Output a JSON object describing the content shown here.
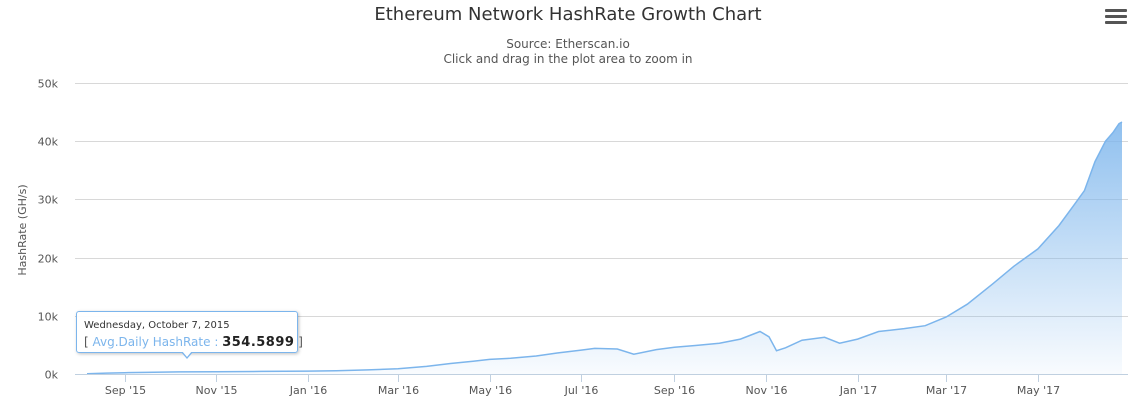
{
  "chart_data": {
    "type": "area",
    "title": "Ethereum Network HashRate Growth Chart",
    "subtitle_lines": [
      "Source: Etherscan.io",
      "Click and drag in the plot area to zoom in"
    ],
    "xlabel": "",
    "ylabel": "HashRate (GH/s)",
    "ylim": [
      0,
      50000
    ],
    "yticks": [
      {
        "value": 0,
        "label": "0k"
      },
      {
        "value": 10000,
        "label": "10k"
      },
      {
        "value": 20000,
        "label": "20k"
      },
      {
        "value": 30000,
        "label": "30k"
      },
      {
        "value": 40000,
        "label": "40k"
      },
      {
        "value": 50000,
        "label": "50k"
      }
    ],
    "xlim": [
      "2015-07-30",
      "2017-06-30"
    ],
    "xticks": [
      {
        "date": "2015-09-01",
        "label": "Sep '15"
      },
      {
        "date": "2015-11-01",
        "label": "Nov '15"
      },
      {
        "date": "2016-01-01",
        "label": "Jan '16"
      },
      {
        "date": "2016-03-01",
        "label": "Mar '16"
      },
      {
        "date": "2016-05-01",
        "label": "May '16"
      },
      {
        "date": "2016-07-01",
        "label": "Jul '16"
      },
      {
        "date": "2016-09-01",
        "label": "Sep '16"
      },
      {
        "date": "2016-11-01",
        "label": "Nov '16"
      },
      {
        "date": "2017-01-01",
        "label": "Jan '17"
      },
      {
        "date": "2017-03-01",
        "label": "Mar '17"
      },
      {
        "date": "2017-05-01",
        "label": "May '17"
      }
    ],
    "grid": true,
    "legend": "none",
    "series": [
      {
        "name": "Avg.Daily HashRate",
        "color": "#7cb5ec",
        "points": [
          [
            "2015-08-07",
            50
          ],
          [
            "2015-08-20",
            150
          ],
          [
            "2015-09-01",
            220
          ],
          [
            "2015-09-15",
            280
          ],
          [
            "2015-10-07",
            354.5899
          ],
          [
            "2015-11-01",
            380
          ],
          [
            "2015-12-01",
            450
          ],
          [
            "2016-01-01",
            500
          ],
          [
            "2016-01-20",
            550
          ],
          [
            "2016-02-10",
            700
          ],
          [
            "2016-03-01",
            900
          ],
          [
            "2016-03-20",
            1300
          ],
          [
            "2016-04-05",
            1800
          ],
          [
            "2016-04-20",
            2200
          ],
          [
            "2016-05-01",
            2500
          ],
          [
            "2016-05-15",
            2700
          ],
          [
            "2016-06-01",
            3100
          ],
          [
            "2016-06-15",
            3600
          ],
          [
            "2016-07-01",
            4100
          ],
          [
            "2016-07-10",
            4400
          ],
          [
            "2016-07-25",
            4300
          ],
          [
            "2016-08-05",
            3400
          ],
          [
            "2016-08-20",
            4200
          ],
          [
            "2016-09-01",
            4600
          ],
          [
            "2016-09-15",
            4900
          ],
          [
            "2016-10-01",
            5300
          ],
          [
            "2016-10-15",
            6000
          ],
          [
            "2016-10-28",
            7300
          ],
          [
            "2016-11-03",
            6400
          ],
          [
            "2016-11-08",
            4000
          ],
          [
            "2016-11-14",
            4500
          ],
          [
            "2016-11-25",
            5800
          ],
          [
            "2016-12-10",
            6300
          ],
          [
            "2016-12-20",
            5300
          ],
          [
            "2017-01-01",
            6000
          ],
          [
            "2017-01-15",
            7300
          ],
          [
            "2017-02-01",
            7800
          ],
          [
            "2017-02-15",
            8300
          ],
          [
            "2017-03-01",
            9800
          ],
          [
            "2017-03-15",
            12000
          ],
          [
            "2017-04-01",
            15500
          ],
          [
            "2017-04-15",
            18500
          ],
          [
            "2017-05-01",
            21500
          ],
          [
            "2017-05-15",
            25500
          ],
          [
            "2017-05-25",
            29000
          ],
          [
            "2017-06-01",
            31500
          ],
          [
            "2017-06-08",
            36500
          ],
          [
            "2017-06-15",
            40000
          ],
          [
            "2017-06-20",
            41500
          ],
          [
            "2017-06-24",
            43000
          ],
          [
            "2017-06-26",
            43300
          ]
        ]
      }
    ],
    "tooltip": {
      "date": "Wednesday, October 7, 2015",
      "open_bracket": "[",
      "series_name": "Avg.Daily HashRate",
      "separator": ":",
      "value": "354.5899",
      "close_bracket": "]"
    }
  }
}
